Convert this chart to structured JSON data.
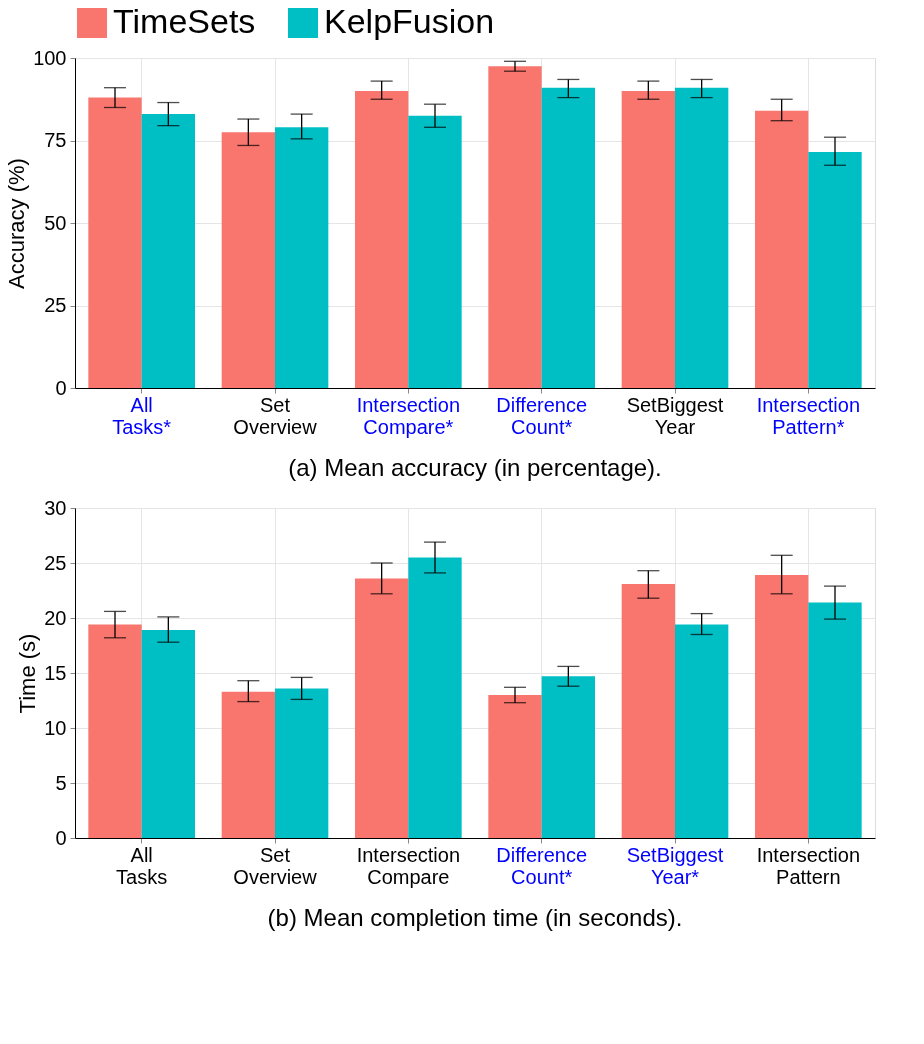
{
  "chart_data": [
    {
      "type": "bar",
      "title": "(a) Mean accuracy (in percentage).",
      "ylabel": "Accuracy (%)",
      "categories": [
        "All Tasks*",
        "Set Overview",
        "Intersection Compare*",
        "Difference Count*",
        "SetBiggest Year",
        "Intersection Pattern*"
      ],
      "series": [
        {
          "name": "TimeSets",
          "color": "#f8766d",
          "values": [
            88,
            77.5,
            90,
            97.5,
            90,
            84
          ],
          "errors": [
            [
              85,
              91
            ],
            [
              73.5,
              81.5
            ],
            [
              87.5,
              93
            ],
            [
              96,
              99
            ],
            [
              87.5,
              93
            ],
            [
              81,
              87.5
            ]
          ]
        },
        {
          "name": "KelpFusion",
          "color": "#00bfc4",
          "values": [
            83,
            79,
            82.5,
            91,
            91,
            71.5
          ],
          "errors": [
            [
              79.5,
              86.5
            ],
            [
              75.5,
              83
            ],
            [
              79,
              86
            ],
            [
              88,
              93.5
            ],
            [
              88,
              93.5
            ],
            [
              67.5,
              76
            ]
          ]
        }
      ],
      "ylim": [
        0,
        100
      ],
      "yticks": [
        0,
        25,
        50,
        75,
        100
      ],
      "grid": true,
      "legend": "top"
    },
    {
      "type": "bar",
      "title": "(b) Mean completion time (in seconds).",
      "ylabel": "Time (s)",
      "categories": [
        "All Tasks",
        "Set Overview",
        "Intersection Compare",
        "Difference Count*",
        "SetBiggest Year*",
        "Intersection Pattern"
      ],
      "series": [
        {
          "color": "#f8766d",
          "values": [
            19.4,
            13.3,
            23.6,
            13,
            23.1,
            23.9
          ],
          "errors": [
            [
              18.2,
              20.6
            ],
            [
              12.4,
              14.3
            ],
            [
              22.2,
              25
            ],
            [
              12.3,
              13.7
            ],
            [
              21.8,
              24.3
            ],
            [
              22.2,
              25.7
            ]
          ]
        },
        {
          "color": "#00bfc4",
          "values": [
            18.9,
            13.6,
            25.5,
            14.7,
            19.4,
            21.4
          ],
          "errors": [
            [
              17.8,
              20.1
            ],
            [
              12.6,
              14.6
            ],
            [
              24.1,
              26.9
            ],
            [
              13.8,
              15.6
            ],
            [
              18.5,
              20.4
            ],
            [
              19.9,
              22.9
            ]
          ]
        }
      ],
      "ylim": [
        0,
        30
      ],
      "yticks": [
        0,
        5,
        10,
        15,
        20,
        25,
        30
      ],
      "grid": true,
      "legend": false
    }
  ]
}
